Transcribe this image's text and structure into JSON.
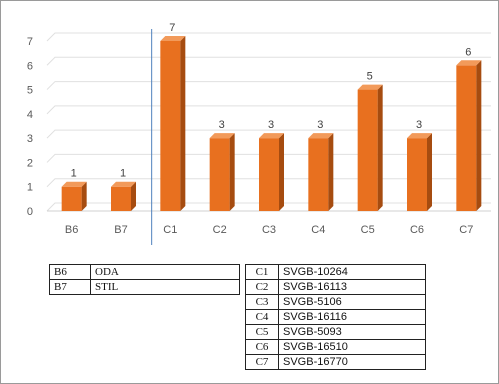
{
  "chart_data": {
    "type": "bar",
    "categories": [
      "B6",
      "B7",
      "C1",
      "C2",
      "C3",
      "C4",
      "C5",
      "C6",
      "C7"
    ],
    "values": [
      1,
      1,
      7,
      3,
      3,
      3,
      5,
      3,
      6
    ],
    "y_ticks": [
      0,
      1,
      2,
      3,
      4,
      5,
      6,
      7
    ],
    "ylim": [
      0,
      7
    ],
    "title": "",
    "xlabel": "",
    "ylabel": "",
    "grid": true,
    "bar_style": "3d",
    "colors": {
      "bar_front": "#e8701f",
      "bar_side": "#a64c10",
      "bar_top": "#f29a5a",
      "grid": "#e0e0e0",
      "separator": "#4f81bd"
    }
  },
  "legend": {
    "left": [
      {
        "code": "B6",
        "name": "ODA"
      },
      {
        "code": "B7",
        "name": "STIL"
      }
    ],
    "right": [
      {
        "code": "C1",
        "name": "SVGB-10264"
      },
      {
        "code": "C2",
        "name": "SVGB-16113"
      },
      {
        "code": "C3",
        "name": "SVGB-5106"
      },
      {
        "code": "C4",
        "name": "SVGB-16116"
      },
      {
        "code": "C5",
        "name": "SVGB-5093"
      },
      {
        "code": "C6",
        "name": "SVGB-16510"
      },
      {
        "code": "C7",
        "name": "SVGB-16770"
      }
    ]
  }
}
